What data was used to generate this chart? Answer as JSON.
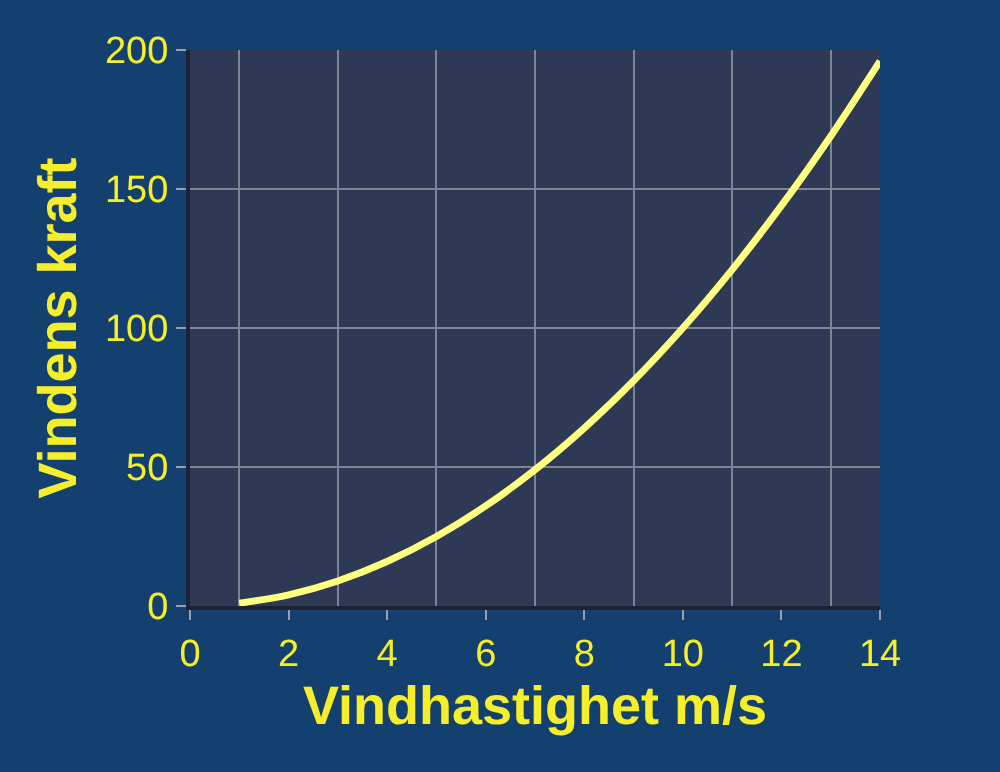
{
  "chart_data": {
    "type": "line",
    "xlabel": "Vindhastighet m/s",
    "ylabel": "Vindens kraft",
    "x": [
      1,
      2,
      3,
      4,
      5,
      6,
      7,
      8,
      9,
      10,
      11,
      12,
      13,
      14
    ],
    "series": [
      {
        "color": "#ffff80",
        "values": [
          1,
          4,
          9,
          16,
          25,
          36,
          49,
          64,
          81,
          100,
          121,
          144,
          169,
          196
        ]
      }
    ],
    "xlim": [
      0,
      14
    ],
    "ylim": [
      0,
      200
    ],
    "xticks": [
      0,
      {
        "value": 1,
        "label": null
      },
      2,
      {
        "value": 3,
        "label": null
      },
      4,
      {
        "value": 5,
        "label": null
      },
      6,
      {
        "value": 7,
        "label": null
      },
      8,
      {
        "value": 9,
        "label": null
      },
      10,
      {
        "value": 11,
        "label": null
      },
      12,
      {
        "value": 13,
        "label": null
      },
      14
    ],
    "yticks": [
      0,
      50,
      100,
      150,
      200
    ],
    "grid": true,
    "marker": "none",
    "line_style": "solid"
  }
}
